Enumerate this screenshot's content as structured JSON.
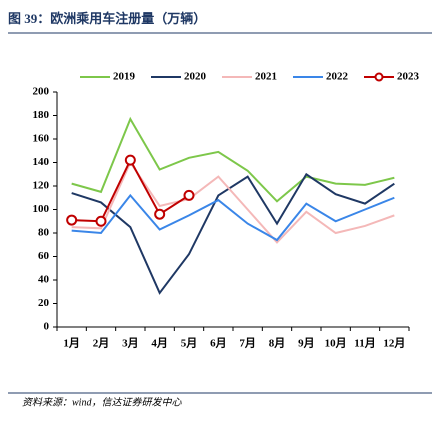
{
  "chart_data": {
    "type": "line",
    "title": "图 39：欧洲乘用车注册量（万辆）",
    "source": "资料来源：wind，信达证券研发中心",
    "categories": [
      "1月",
      "2月",
      "3月",
      "4月",
      "5月",
      "6月",
      "7月",
      "8月",
      "9月",
      "10月",
      "11月",
      "12月"
    ],
    "series": [
      {
        "name": "2019",
        "color": "#7dc74a",
        "values": [
          122,
          115,
          177,
          134,
          144,
          149,
          133,
          107,
          128,
          122,
          121,
          127
        ]
      },
      {
        "name": "2020",
        "color": "#1f3864",
        "values": [
          114,
          106,
          85,
          29,
          62,
          112,
          128,
          88,
          130,
          113,
          105,
          122
        ]
      },
      {
        "name": "2021",
        "color": "#f4b8b8",
        "values": [
          85,
          84,
          140,
          103,
          109,
          128,
          100,
          72,
          98,
          80,
          86,
          95
        ]
      },
      {
        "name": "2022",
        "color": "#3a86e8",
        "values": [
          82,
          80,
          112,
          83,
          95,
          108,
          88,
          74,
          105,
          90,
          100,
          110
        ]
      },
      {
        "name": "2023",
        "color": "#c00000",
        "markers": true,
        "values": [
          91,
          90,
          142,
          96,
          112,
          null,
          null,
          null,
          null,
          null,
          null,
          null
        ]
      }
    ],
    "ylim": [
      0,
      200
    ],
    "yticks": [
      0,
      20,
      40,
      60,
      80,
      100,
      120,
      140,
      160,
      180,
      200
    ]
  }
}
